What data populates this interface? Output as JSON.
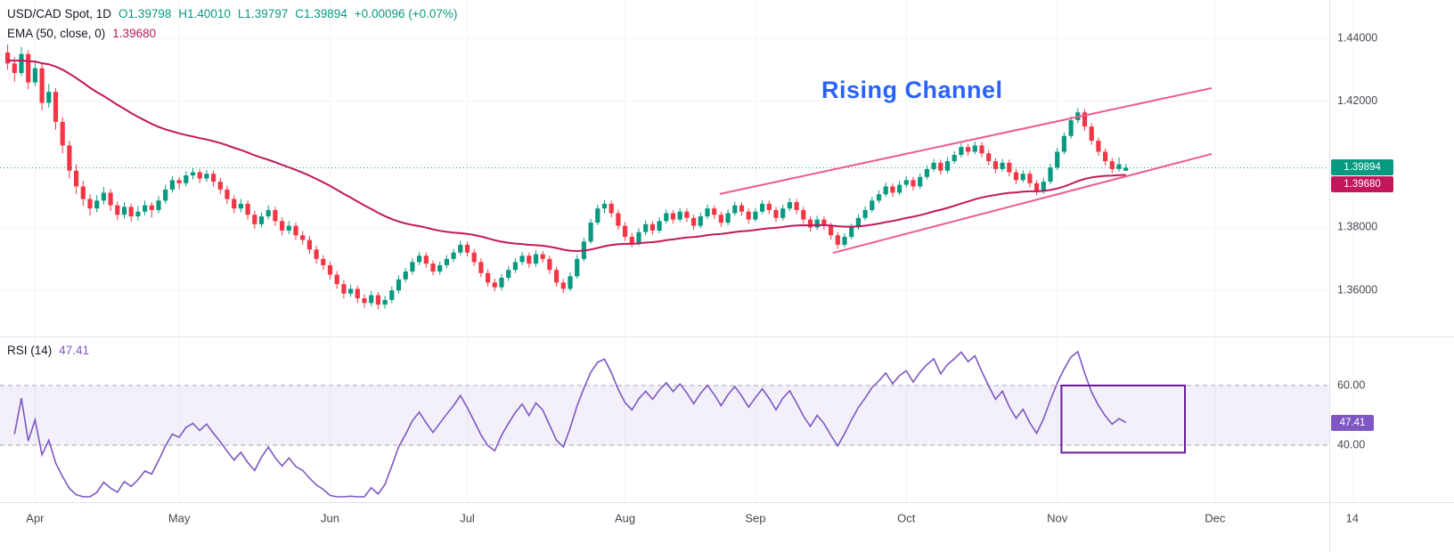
{
  "legend": {
    "symbol": "USD/CAD Spot, 1D",
    "ohlc": {
      "o": "O1.39798",
      "h": "H1.40010",
      "l": "L1.39797",
      "c": "C1.39894",
      "change": "+0.00096 (+0.07%)"
    },
    "ema": {
      "label": "EMA (50, close, 0)",
      "value": "1.39680"
    },
    "rsi": {
      "label": "RSI (14)",
      "value": "47.41"
    }
  },
  "axis": {
    "price_ticks": [
      {
        "label": "1.44000",
        "value": 1.44
      },
      {
        "label": "1.42000",
        "value": 1.42
      },
      {
        "label": "1.38000",
        "value": 1.38
      },
      {
        "label": "1.36000",
        "value": 1.36
      }
    ],
    "rsi_ticks": [
      {
        "label": "60.00",
        "value": 60
      },
      {
        "label": "40.00",
        "value": 40
      }
    ],
    "time_labels": [
      {
        "label": "Apr",
        "idx": 4
      },
      {
        "label": "May",
        "idx": 25
      },
      {
        "label": "Jun",
        "idx": 47
      },
      {
        "label": "Jul",
        "idx": 67
      },
      {
        "label": "Aug",
        "idx": 90
      },
      {
        "label": "Sep",
        "idx": 109
      },
      {
        "label": "Oct",
        "idx": 131
      },
      {
        "label": "Nov",
        "idx": 153
      },
      {
        "label": "Dec",
        "idx": 176
      },
      {
        "label": "14",
        "idx": 196
      }
    ],
    "price_badge": "1.39894",
    "ema_badge": "1.39680",
    "rsi_badge": "47.41"
  },
  "annotations": {
    "channel_label": "Rising Channel",
    "channel_upper": {
      "i1": 103.8,
      "p1": 1.3906,
      "i2": 175.5,
      "p2": 1.4242
    },
    "channel_lower": {
      "i1": 120.3,
      "p1": 1.3719,
      "i2": 175.5,
      "p2": 1.4033
    },
    "rsi_box": {
      "i1": 154,
      "i2": 172,
      "v1": 60,
      "v2": 37.5
    }
  },
  "colors": {
    "up": "#089981",
    "down": "#f23645",
    "ema": "#c2185b",
    "rsi_line": "#7e57c2",
    "channel": "#ef5b8c",
    "annotation_blue": "#2962ff",
    "badge_price": "#089981",
    "badge_ema": "#c2185b",
    "badge_rsi": "#7e57c2",
    "band_fill": "rgba(126,87,194,0.09)",
    "band_line": "#a5a8b5",
    "box": "#6a1b9a",
    "grid": "#f2f4f8",
    "axis_border": "#e0e3eb",
    "current_price_line": "#089981",
    "axis_text": "#44484f"
  },
  "chart_data": {
    "type": "candlestick",
    "symbol": "USD/CAD Spot",
    "interval": "1D",
    "title": "USD/CAD Spot, 1D with EMA(50) and RSI(14)",
    "ohlc_header": {
      "open": 1.39798,
      "high": 1.4001,
      "low": 1.39797,
      "close": 1.39894,
      "change_abs": 0.00096,
      "change_pct": 0.07
    },
    "y_axis": {
      "visible_range": [
        1.3495,
        1.4475
      ],
      "ticks": [
        1.44,
        1.42,
        1.38,
        1.36
      ]
    },
    "x_axis_months": [
      "Apr",
      "May",
      "Jun",
      "Jul",
      "Aug",
      "Sep",
      "Oct",
      "Nov",
      "Dec"
    ],
    "overlays": [
      {
        "name": "EMA",
        "period": 50,
        "source": "close",
        "offset": 0,
        "current_value": 1.3968
      }
    ],
    "indicator": {
      "name": "RSI",
      "period": 14,
      "current_value": 47.41,
      "band": [
        40,
        60
      ],
      "legend_position": "pane-top-left"
    },
    "candles": [
      [
        1.4355,
        1.438,
        1.43,
        1.432
      ],
      [
        1.432,
        1.434,
        1.4262,
        1.429
      ],
      [
        1.429,
        1.4372,
        1.428,
        1.435
      ],
      [
        1.435,
        1.4362,
        1.4238,
        1.426
      ],
      [
        1.426,
        1.433,
        1.4248,
        1.4305
      ],
      [
        1.4305,
        1.4318,
        1.4172,
        1.4195
      ],
      [
        1.4195,
        1.4255,
        1.418,
        1.423
      ],
      [
        1.423,
        1.4242,
        1.411,
        1.4135
      ],
      [
        1.4135,
        1.415,
        1.4035,
        1.406
      ],
      [
        1.406,
        1.4075,
        1.3955,
        1.398
      ],
      [
        1.398,
        1.4,
        1.3905,
        1.393
      ],
      [
        1.393,
        1.3948,
        1.3868,
        1.389
      ],
      [
        1.389,
        1.3905,
        1.3838,
        1.386
      ],
      [
        1.386,
        1.3902,
        1.3848,
        1.3885
      ],
      [
        1.3885,
        1.3928,
        1.3872,
        1.391
      ],
      [
        1.391,
        1.3922,
        1.3852,
        1.387
      ],
      [
        1.387,
        1.3882,
        1.3822,
        1.384
      ],
      [
        1.384,
        1.388,
        1.3828,
        1.3865
      ],
      [
        1.3865,
        1.3875,
        1.3818,
        1.3835
      ],
      [
        1.3835,
        1.3868,
        1.3822,
        1.385
      ],
      [
        1.385,
        1.3885,
        1.3838,
        1.387
      ],
      [
        1.387,
        1.388,
        1.3832,
        1.3855
      ],
      [
        1.3855,
        1.39,
        1.3845,
        1.3885
      ],
      [
        1.3885,
        1.3935,
        1.3875,
        1.392
      ],
      [
        1.392,
        1.3962,
        1.391,
        1.395
      ],
      [
        1.395,
        1.396,
        1.3922,
        1.394
      ],
      [
        1.394,
        1.3978,
        1.393,
        1.3965
      ],
      [
        1.3965,
        1.3988,
        1.3952,
        1.3975
      ],
      [
        1.3975,
        1.3985,
        1.394,
        1.3955
      ],
      [
        1.3955,
        1.3982,
        1.3945,
        1.397
      ],
      [
        1.397,
        1.398,
        1.393,
        1.3945
      ],
      [
        1.3945,
        1.3958,
        1.3905,
        1.392
      ],
      [
        1.392,
        1.3932,
        1.3875,
        1.389
      ],
      [
        1.389,
        1.3902,
        1.3845,
        1.386
      ],
      [
        1.386,
        1.389,
        1.3848,
        1.3875
      ],
      [
        1.3875,
        1.3885,
        1.3825,
        1.384
      ],
      [
        1.384,
        1.3852,
        1.3795,
        1.381
      ],
      [
        1.381,
        1.3848,
        1.38,
        1.3835
      ],
      [
        1.3835,
        1.387,
        1.3825,
        1.3855
      ],
      [
        1.3855,
        1.3865,
        1.3805,
        1.382
      ],
      [
        1.382,
        1.3832,
        1.3775,
        1.379
      ],
      [
        1.379,
        1.382,
        1.3778,
        1.3805
      ],
      [
        1.3805,
        1.3815,
        1.376,
        1.3775
      ],
      [
        1.3775,
        1.3788,
        1.3745,
        1.376
      ],
      [
        1.376,
        1.3772,
        1.3715,
        1.373
      ],
      [
        1.373,
        1.3742,
        1.3685,
        1.37
      ],
      [
        1.37,
        1.3712,
        1.3665,
        1.368
      ],
      [
        1.368,
        1.3692,
        1.3635,
        1.365
      ],
      [
        1.365,
        1.3662,
        1.3605,
        1.362
      ],
      [
        1.362,
        1.3632,
        1.3575,
        1.359
      ],
      [
        1.359,
        1.3618,
        1.358,
        1.3605
      ],
      [
        1.3605,
        1.3615,
        1.356,
        1.3575
      ],
      [
        1.3575,
        1.3588,
        1.3545,
        1.356
      ],
      [
        1.356,
        1.3598,
        1.355,
        1.3585
      ],
      [
        1.3585,
        1.3595,
        1.354,
        1.3555
      ],
      [
        1.3555,
        1.3582,
        1.3542,
        1.357
      ],
      [
        1.357,
        1.3612,
        1.356,
        1.36
      ],
      [
        1.36,
        1.3648,
        1.359,
        1.3635
      ],
      [
        1.3635,
        1.3672,
        1.3625,
        1.366
      ],
      [
        1.366,
        1.3702,
        1.365,
        1.369
      ],
      [
        1.369,
        1.3722,
        1.368,
        1.371
      ],
      [
        1.371,
        1.372,
        1.3672,
        1.3685
      ],
      [
        1.3685,
        1.3695,
        1.3648,
        1.366
      ],
      [
        1.366,
        1.3692,
        1.365,
        1.368
      ],
      [
        1.368,
        1.3712,
        1.367,
        1.37
      ],
      [
        1.37,
        1.3732,
        1.369,
        1.372
      ],
      [
        1.372,
        1.3757,
        1.371,
        1.3745
      ],
      [
        1.3745,
        1.3755,
        1.3708,
        1.372
      ],
      [
        1.372,
        1.3732,
        1.3678,
        1.369
      ],
      [
        1.369,
        1.3702,
        1.3642,
        1.3655
      ],
      [
        1.3655,
        1.3667,
        1.3612,
        1.3625
      ],
      [
        1.3625,
        1.3637,
        1.3597,
        1.361
      ],
      [
        1.361,
        1.3652,
        1.36,
        1.364
      ],
      [
        1.364,
        1.3677,
        1.363,
        1.3665
      ],
      [
        1.3665,
        1.3702,
        1.3655,
        1.369
      ],
      [
        1.369,
        1.3722,
        1.368,
        1.371
      ],
      [
        1.371,
        1.372,
        1.3672,
        1.3685
      ],
      [
        1.3685,
        1.3727,
        1.3675,
        1.3715
      ],
      [
        1.3715,
        1.3725,
        1.3688,
        1.37
      ],
      [
        1.37,
        1.371,
        1.3652,
        1.3665
      ],
      [
        1.3665,
        1.3675,
        1.3612,
        1.3625
      ],
      [
        1.3625,
        1.3637,
        1.3592,
        1.3605
      ],
      [
        1.3605,
        1.3657,
        1.3598,
        1.3645
      ],
      [
        1.3645,
        1.3712,
        1.3638,
        1.37
      ],
      [
        1.37,
        1.3767,
        1.3692,
        1.3755
      ],
      [
        1.3755,
        1.3827,
        1.3748,
        1.3815
      ],
      [
        1.3815,
        1.3872,
        1.3808,
        1.386
      ],
      [
        1.386,
        1.3887,
        1.3845,
        1.3875
      ],
      [
        1.3875,
        1.3885,
        1.3832,
        1.3845
      ],
      [
        1.3845,
        1.3857,
        1.3792,
        1.3805
      ],
      [
        1.3805,
        1.3817,
        1.3757,
        1.377
      ],
      [
        1.377,
        1.3782,
        1.3737,
        1.375
      ],
      [
        1.375,
        1.3797,
        1.3742,
        1.3785
      ],
      [
        1.3785,
        1.3822,
        1.3775,
        1.381
      ],
      [
        1.381,
        1.382,
        1.3777,
        1.379
      ],
      [
        1.379,
        1.3832,
        1.3782,
        1.382
      ],
      [
        1.382,
        1.3857,
        1.3812,
        1.3845
      ],
      [
        1.3845,
        1.3855,
        1.3812,
        1.3825
      ],
      [
        1.3825,
        1.3862,
        1.3817,
        1.385
      ],
      [
        1.385,
        1.386,
        1.3817,
        1.383
      ],
      [
        1.383,
        1.384,
        1.3792,
        1.3805
      ],
      [
        1.3805,
        1.3847,
        1.3797,
        1.3835
      ],
      [
        1.3835,
        1.3872,
        1.3827,
        1.386
      ],
      [
        1.386,
        1.387,
        1.3827,
        1.384
      ],
      [
        1.384,
        1.385,
        1.3802,
        1.3815
      ],
      [
        1.3815,
        1.3857,
        1.3807,
        1.3845
      ],
      [
        1.3845,
        1.3882,
        1.3837,
        1.387
      ],
      [
        1.387,
        1.388,
        1.3837,
        1.385
      ],
      [
        1.385,
        1.386,
        1.3812,
        1.3825
      ],
      [
        1.3825,
        1.3862,
        1.3817,
        1.385
      ],
      [
        1.385,
        1.3887,
        1.3842,
        1.3875
      ],
      [
        1.3875,
        1.3885,
        1.3842,
        1.3855
      ],
      [
        1.3855,
        1.3865,
        1.3817,
        1.383
      ],
      [
        1.383,
        1.3872,
        1.3822,
        1.386
      ],
      [
        1.386,
        1.3892,
        1.3852,
        1.388
      ],
      [
        1.388,
        1.389,
        1.3842,
        1.3855
      ],
      [
        1.3855,
        1.3865,
        1.3812,
        1.3825
      ],
      [
        1.3825,
        1.3835,
        1.3787,
        1.38
      ],
      [
        1.38,
        1.3837,
        1.3792,
        1.3825
      ],
      [
        1.3825,
        1.3835,
        1.3792,
        1.3805
      ],
      [
        1.3805,
        1.3815,
        1.3762,
        1.3775
      ],
      [
        1.3775,
        1.3785,
        1.3732,
        1.3745
      ],
      [
        1.3745,
        1.3782,
        1.3737,
        1.377
      ],
      [
        1.377,
        1.3812,
        1.3762,
        1.38
      ],
      [
        1.38,
        1.3842,
        1.3792,
        1.383
      ],
      [
        1.383,
        1.3867,
        1.3822,
        1.3855
      ],
      [
        1.3855,
        1.3897,
        1.3847,
        1.3885
      ],
      [
        1.3885,
        1.3917,
        1.3877,
        1.3905
      ],
      [
        1.3905,
        1.3942,
        1.3897,
        1.393
      ],
      [
        1.393,
        1.394,
        1.3897,
        1.391
      ],
      [
        1.391,
        1.3947,
        1.3902,
        1.3935
      ],
      [
        1.3935,
        1.3962,
        1.3927,
        1.395
      ],
      [
        1.395,
        1.396,
        1.3917,
        1.393
      ],
      [
        1.393,
        1.3972,
        1.3922,
        1.396
      ],
      [
        1.396,
        1.3997,
        1.3952,
        1.3985
      ],
      [
        1.3985,
        1.4017,
        1.3977,
        1.4005
      ],
      [
        1.4005,
        1.4015,
        1.3967,
        1.398
      ],
      [
        1.398,
        1.4022,
        1.3972,
        1.401
      ],
      [
        1.401,
        1.4042,
        1.4002,
        1.403
      ],
      [
        1.403,
        1.4067,
        1.4022,
        1.4055
      ],
      [
        1.4055,
        1.4065,
        1.4027,
        1.404
      ],
      [
        1.404,
        1.4072,
        1.4032,
        1.406
      ],
      [
        1.406,
        1.407,
        1.4022,
        1.4035
      ],
      [
        1.4035,
        1.4045,
        1.3997,
        1.401
      ],
      [
        1.401,
        1.402,
        1.3972,
        1.3985
      ],
      [
        1.3985,
        1.4017,
        1.3977,
        1.4005
      ],
      [
        1.4005,
        1.4015,
        1.3962,
        1.3975
      ],
      [
        1.3975,
        1.3985,
        1.3937,
        1.395
      ],
      [
        1.395,
        1.3982,
        1.3942,
        1.397
      ],
      [
        1.397,
        1.398,
        1.3927,
        1.394
      ],
      [
        1.394,
        1.395,
        1.3902,
        1.3915
      ],
      [
        1.3915,
        1.3957,
        1.3907,
        1.3945
      ],
      [
        1.3945,
        1.4002,
        1.3937,
        1.399
      ],
      [
        1.399,
        1.4052,
        1.3982,
        1.404
      ],
      [
        1.404,
        1.4102,
        1.4032,
        1.409
      ],
      [
        1.409,
        1.4152,
        1.4082,
        1.414
      ],
      [
        1.414,
        1.4178,
        1.413,
        1.4165
      ],
      [
        1.4165,
        1.4175,
        1.4107,
        1.412
      ],
      [
        1.412,
        1.413,
        1.4062,
        1.4075
      ],
      [
        1.4075,
        1.4085,
        1.4027,
        1.404
      ],
      [
        1.404,
        1.405,
        1.3997,
        1.401
      ],
      [
        1.401,
        1.402,
        1.3972,
        1.3985
      ],
      [
        1.3985,
        1.4022,
        1.3977,
        1.4
      ],
      [
        1.39798,
        1.4001,
        1.39797,
        1.39894
      ]
    ]
  }
}
